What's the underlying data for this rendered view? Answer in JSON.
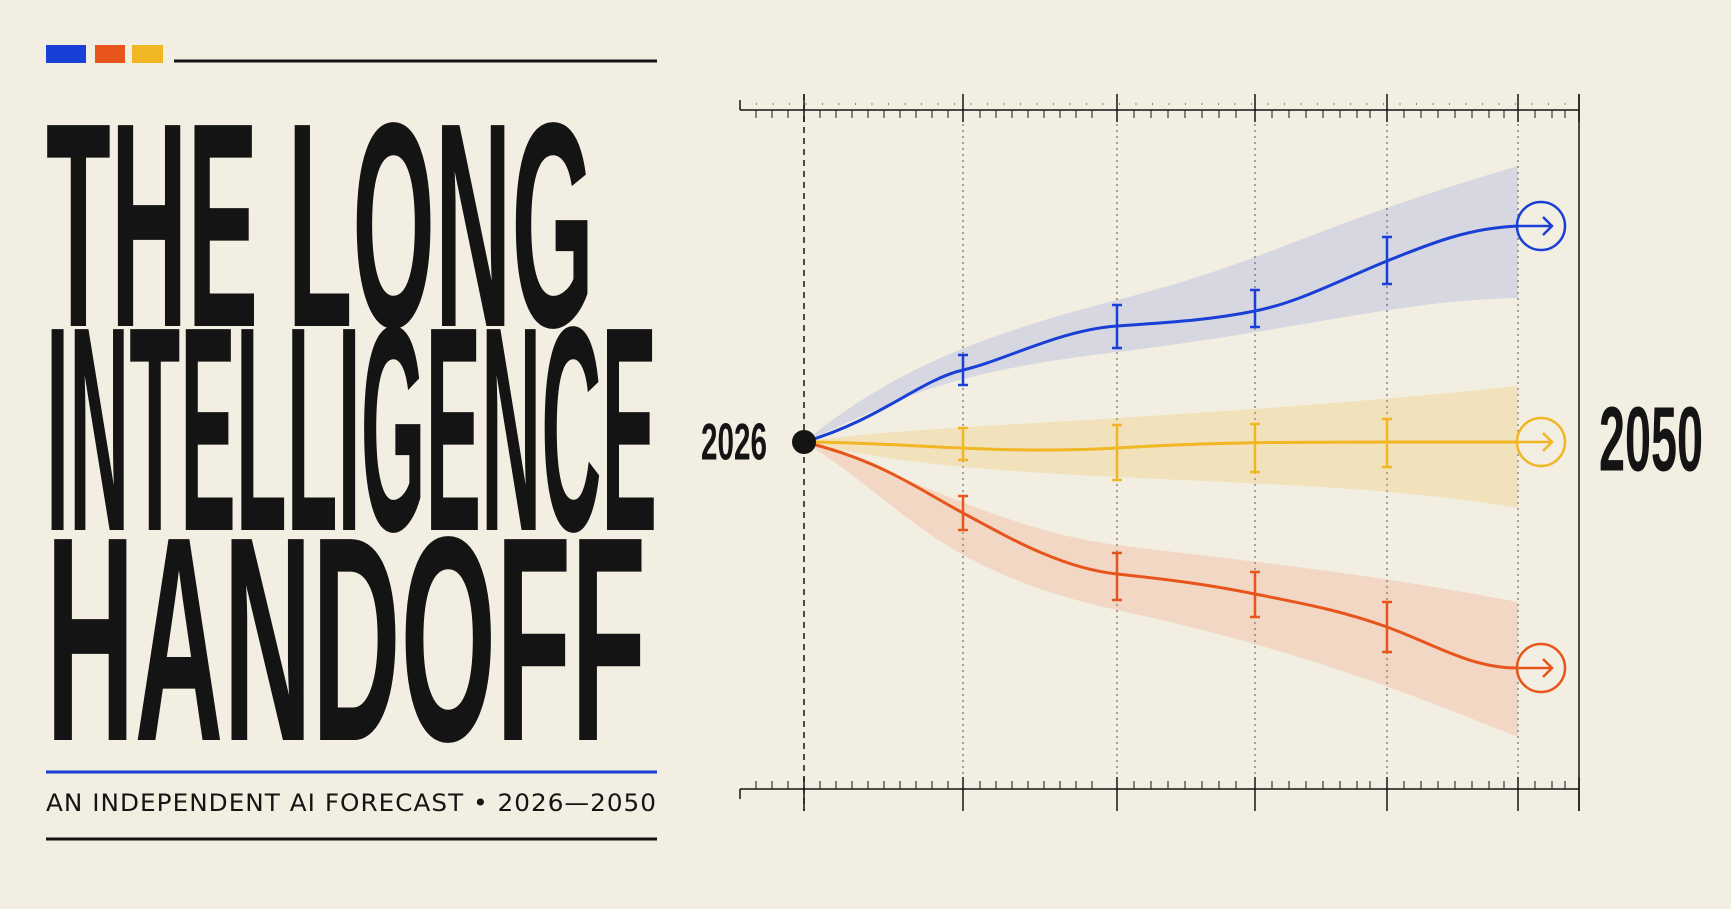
{
  "header": {
    "title_lines": [
      "THE LONG",
      "INTELLIGENCE",
      "HANDOFF"
    ],
    "subtitle": "AN INDEPENDENT AI FORECAST • 2026—2050"
  },
  "timeline": {
    "start": "2026",
    "end": "2050"
  }
}
